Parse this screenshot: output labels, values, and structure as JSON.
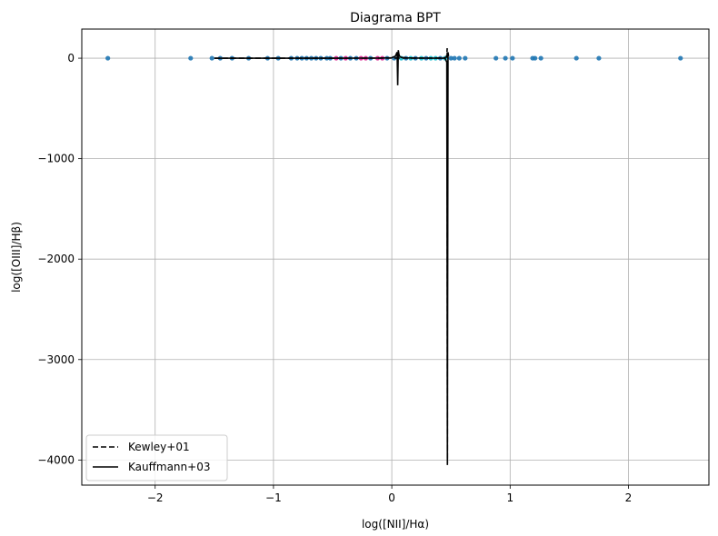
{
  "chart_data": {
    "type": "scatter",
    "title": "Diagrama BPT",
    "xlabel": "log([NII]/Hα)",
    "ylabel": "log([OIII]/Hβ)",
    "xlim": [
      -2.62,
      2.68
    ],
    "ylim": [
      -4250,
      290
    ],
    "xticks": [
      -2,
      -1,
      0,
      1,
      2
    ],
    "xtick_labels": [
      "−2",
      "−1",
      "0",
      "1",
      "2"
    ],
    "yticks": [
      0,
      -1000,
      -2000,
      -3000,
      -4000
    ],
    "ytick_labels": [
      "0",
      "−1000",
      "−2000",
      "−3000",
      "−4000"
    ],
    "grid": true,
    "legend_position": "lower-left",
    "points": [
      {
        "x": -2.4,
        "y": 0,
        "c": "#1f77b4"
      },
      {
        "x": -1.7,
        "y": 0,
        "c": "#1f77b4"
      },
      {
        "x": -1.52,
        "y": 0,
        "c": "#1f77b4"
      },
      {
        "x": -1.45,
        "y": 0,
        "c": "#1f77b4"
      },
      {
        "x": -1.35,
        "y": 0,
        "c": "#1f77b4"
      },
      {
        "x": -1.21,
        "y": 0,
        "c": "#1f77b4"
      },
      {
        "x": -1.05,
        "y": 0,
        "c": "#1f77b4"
      },
      {
        "x": -0.96,
        "y": 0,
        "c": "#1f77b4"
      },
      {
        "x": -0.85,
        "y": 0,
        "c": "#1f77b4"
      },
      {
        "x": -0.8,
        "y": 0,
        "c": "#1f77b4"
      },
      {
        "x": -0.76,
        "y": 0,
        "c": "#1f77b4"
      },
      {
        "x": -0.72,
        "y": 0,
        "c": "#1f77b4"
      },
      {
        "x": -0.68,
        "y": 0,
        "c": "#1f77b4"
      },
      {
        "x": -0.64,
        "y": 0,
        "c": "#1f77b4"
      },
      {
        "x": -0.6,
        "y": 0,
        "c": "#1f77b4"
      },
      {
        "x": -0.55,
        "y": 0,
        "c": "#1f77b4"
      },
      {
        "x": -0.52,
        "y": 0,
        "c": "#1f77b4"
      },
      {
        "x": -0.47,
        "y": 0,
        "c": "#d62790"
      },
      {
        "x": -0.43,
        "y": 0,
        "c": "#1f77b4"
      },
      {
        "x": -0.39,
        "y": 0,
        "c": "#d62790"
      },
      {
        "x": -0.35,
        "y": 0,
        "c": "#1f77b4"
      },
      {
        "x": -0.3,
        "y": 0,
        "c": "#1f77b4"
      },
      {
        "x": -0.26,
        "y": 0,
        "c": "#d62790"
      },
      {
        "x": -0.22,
        "y": 0,
        "c": "#d62790"
      },
      {
        "x": -0.18,
        "y": 0,
        "c": "#1f77b4"
      },
      {
        "x": -0.12,
        "y": 0,
        "c": "#d62790"
      },
      {
        "x": -0.08,
        "y": 0,
        "c": "#d62790"
      },
      {
        "x": -0.04,
        "y": 0,
        "c": "#1f77b4"
      },
      {
        "x": 0.02,
        "y": 0,
        "c": "#1f77b4"
      },
      {
        "x": 0.08,
        "y": 0,
        "c": "#17becf"
      },
      {
        "x": 0.12,
        "y": 0,
        "c": "#1f77b4"
      },
      {
        "x": 0.16,
        "y": 0,
        "c": "#17becf"
      },
      {
        "x": 0.2,
        "y": 0,
        "c": "#1f77b4"
      },
      {
        "x": 0.25,
        "y": 0,
        "c": "#17becf"
      },
      {
        "x": 0.29,
        "y": 0,
        "c": "#1f77b4"
      },
      {
        "x": 0.33,
        "y": 0,
        "c": "#17becf"
      },
      {
        "x": 0.37,
        "y": 0,
        "c": "#17becf"
      },
      {
        "x": 0.41,
        "y": 0,
        "c": "#1f77b4"
      },
      {
        "x": 0.45,
        "y": 0,
        "c": "#17becf"
      },
      {
        "x": 0.5,
        "y": 0,
        "c": "#1f77b4"
      },
      {
        "x": 0.53,
        "y": 0,
        "c": "#1f77b4"
      },
      {
        "x": 0.57,
        "y": 0,
        "c": "#1f77b4"
      },
      {
        "x": 0.62,
        "y": 0,
        "c": "#1f77b4"
      },
      {
        "x": 0.88,
        "y": 0,
        "c": "#1f77b4"
      },
      {
        "x": 0.96,
        "y": 0,
        "c": "#1f77b4"
      },
      {
        "x": 1.02,
        "y": 0,
        "c": "#1f77b4"
      },
      {
        "x": 1.19,
        "y": 0,
        "c": "#1f77b4"
      },
      {
        "x": 1.21,
        "y": 0,
        "c": "#1f77b4"
      },
      {
        "x": 1.26,
        "y": 0,
        "c": "#1f77b4"
      },
      {
        "x": 1.56,
        "y": 0,
        "c": "#1f77b4"
      },
      {
        "x": 1.75,
        "y": 0,
        "c": "#1f77b4"
      },
      {
        "x": 2.44,
        "y": 0,
        "c": "#1f77b4"
      }
    ],
    "series": [
      {
        "name": "Kewley+01",
        "style": "dashed",
        "color": "#000000",
        "x": [
          -1.5,
          -1.2,
          -0.9,
          -0.6,
          -0.3,
          0.0,
          0.2,
          0.35,
          0.42,
          0.45,
          0.46,
          0.465,
          0.468,
          0.47
        ],
        "y": [
          -0.25,
          -0.1,
          0.1,
          0.35,
          0.6,
          0.9,
          1.2,
          1.6,
          2.5,
          5,
          12,
          30,
          100,
          -4030
        ]
      },
      {
        "name": "Kauffmann+03",
        "style": "solid",
        "color": "#000000",
        "x": [
          -1.5,
          -1.2,
          -0.9,
          -0.6,
          -0.3,
          -0.1,
          0.0,
          0.03,
          0.045,
          0.05,
          0.055,
          0.06,
          0.065,
          0.08,
          0.12,
          0.2,
          0.3,
          0.4,
          0.45,
          0.465,
          0.47,
          0.475,
          0.48
        ],
        "y": [
          -0.5,
          -0.3,
          -0.1,
          0.2,
          0.5,
          1.0,
          5.0,
          20,
          60,
          -270,
          80,
          40,
          20,
          8,
          3,
          1,
          0.5,
          0.2,
          0,
          -40,
          -4050,
          60,
          20
        ]
      }
    ]
  }
}
